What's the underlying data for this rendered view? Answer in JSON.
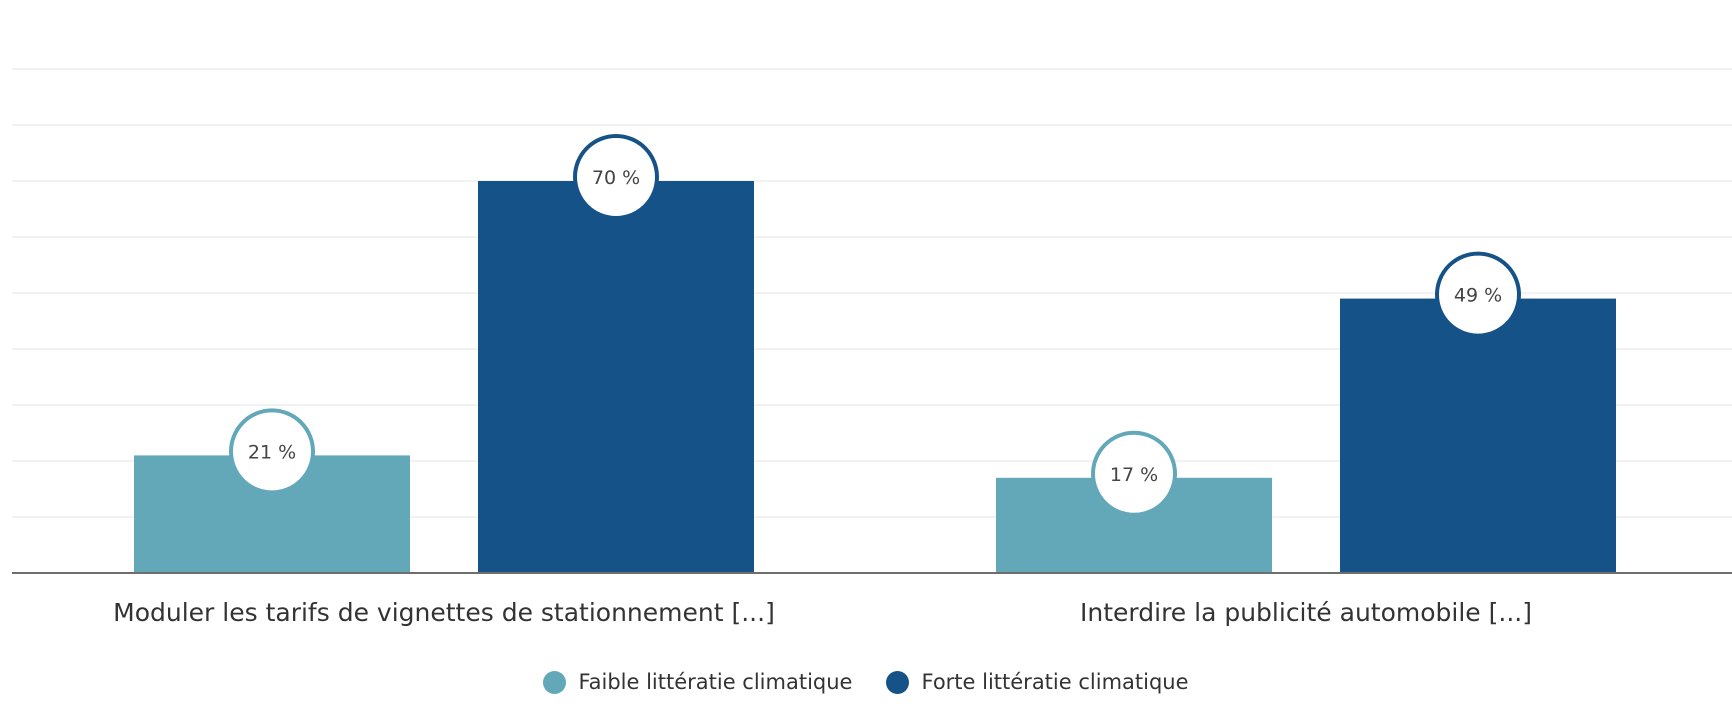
{
  "chart_data": {
    "type": "bar",
    "categories": [
      "Moduler les tarifs de vignettes de stationnement [...]",
      "Interdire la publicité automobile [...]"
    ],
    "series": [
      {
        "name": "Faible littératie climatique",
        "values": [
          21,
          17
        ],
        "labels": [
          "21 %",
          "17 %"
        ],
        "color": "#63a8b9"
      },
      {
        "name": "Forte littératie climatique",
        "values": [
          70,
          49
        ],
        "labels": [
          "70 %",
          "49 %"
        ],
        "color": "#155287"
      }
    ],
    "ylim": [
      0,
      90
    ],
    "grid": true,
    "legend_position": "bottom-center",
    "title": "",
    "xlabel": "",
    "ylabel": ""
  }
}
